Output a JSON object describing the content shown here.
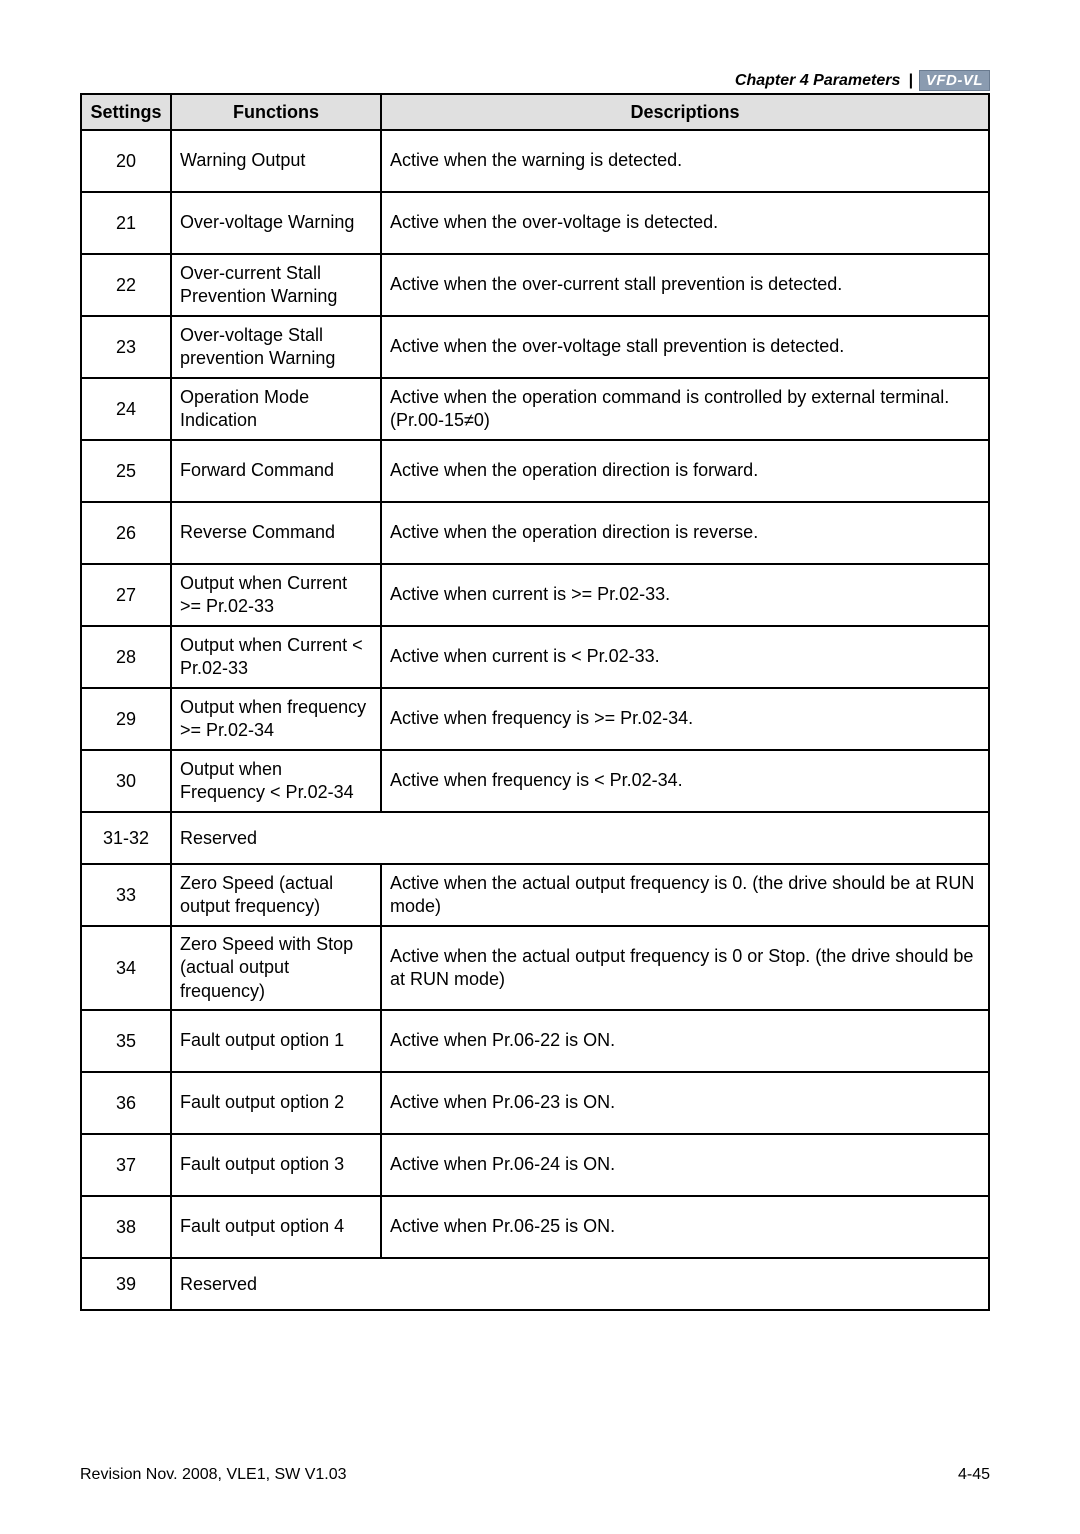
{
  "header": {
    "chapter": "Chapter 4 Parameters",
    "logo": "VFD-VL"
  },
  "table": {
    "columns": {
      "settings": "Settings",
      "functions": "Functions",
      "descriptions": "Descriptions"
    },
    "rows": [
      {
        "setting": "20",
        "function": "Warning Output",
        "description": "Active when the warning is detected."
      },
      {
        "setting": "21",
        "function": "Over-voltage Warning",
        "description": "Active when the over-voltage is detected."
      },
      {
        "setting": "22",
        "function": "Over-current Stall Prevention Warning",
        "description": "Active when the over-current stall prevention is detected."
      },
      {
        "setting": "23",
        "function": "Over-voltage Stall prevention Warning",
        "description": "Active when the over-voltage stall prevention is detected."
      },
      {
        "setting": "24",
        "function": "Operation Mode Indication",
        "description": "Active when the operation command is controlled by external terminal. (Pr.00-15≠0)"
      },
      {
        "setting": "25",
        "function": "Forward Command",
        "description": "Active when the operation direction is forward."
      },
      {
        "setting": "26",
        "function": "Reverse Command",
        "description": "Active when the operation direction is reverse."
      },
      {
        "setting": "27",
        "function": "Output when Current >= Pr.02-33",
        "description": "Active when current is  >= Pr.02-33."
      },
      {
        "setting": "28",
        "function": "Output when Current < Pr.02-33",
        "description": "Active when current is  < Pr.02-33."
      },
      {
        "setting": "29",
        "function": "Output when frequency >= Pr.02-34",
        "description": "Active when frequency is >= Pr.02-34."
      },
      {
        "setting": "30",
        "function": "Output when Frequency < Pr.02-34",
        "description": "Active when frequency is < Pr.02-34."
      },
      {
        "setting": "31-32",
        "function": "Reserved",
        "description": null,
        "merged": true
      },
      {
        "setting": "33",
        "function": "Zero Speed (actual output frequency)",
        "description": "Active when the actual output frequency is 0. (the drive should be at RUN mode)"
      },
      {
        "setting": "34",
        "function": "Zero Speed with Stop (actual output frequency)",
        "description": "Active when the actual output frequency is 0 or Stop. (the drive should be at RUN mode)"
      },
      {
        "setting": "35",
        "function": "Fault output option 1",
        "description": "Active when Pr.06-22 is ON."
      },
      {
        "setting": "36",
        "function": "Fault output option 2",
        "description": "Active when Pr.06-23 is ON."
      },
      {
        "setting": "37",
        "function": "Fault output option 3",
        "description": "Active when Pr.06-24 is ON."
      },
      {
        "setting": "38",
        "function": "Fault output option 4",
        "description": "Active when Pr.06-25 is ON."
      },
      {
        "setting": "39",
        "function": "Reserved",
        "description": null,
        "merged": true
      }
    ]
  },
  "footer": {
    "revision": "Revision Nov. 2008, VLE1, SW V1.03",
    "page": "4-45"
  },
  "styling": {
    "background": "#ffffff",
    "border_color": "#000000",
    "header_bg": "#e0e0e0",
    "text_color": "#000000",
    "font_family": "Arial",
    "body_fontsize": 18,
    "header_fontsize": 18,
    "footer_fontsize": 16,
    "chapter_fontsize": 16,
    "border_width": 2,
    "logo_bg": "#8a9bb0",
    "logo_color": "#ffffff",
    "col_widths": {
      "settings": 90,
      "functions": 210
    }
  }
}
